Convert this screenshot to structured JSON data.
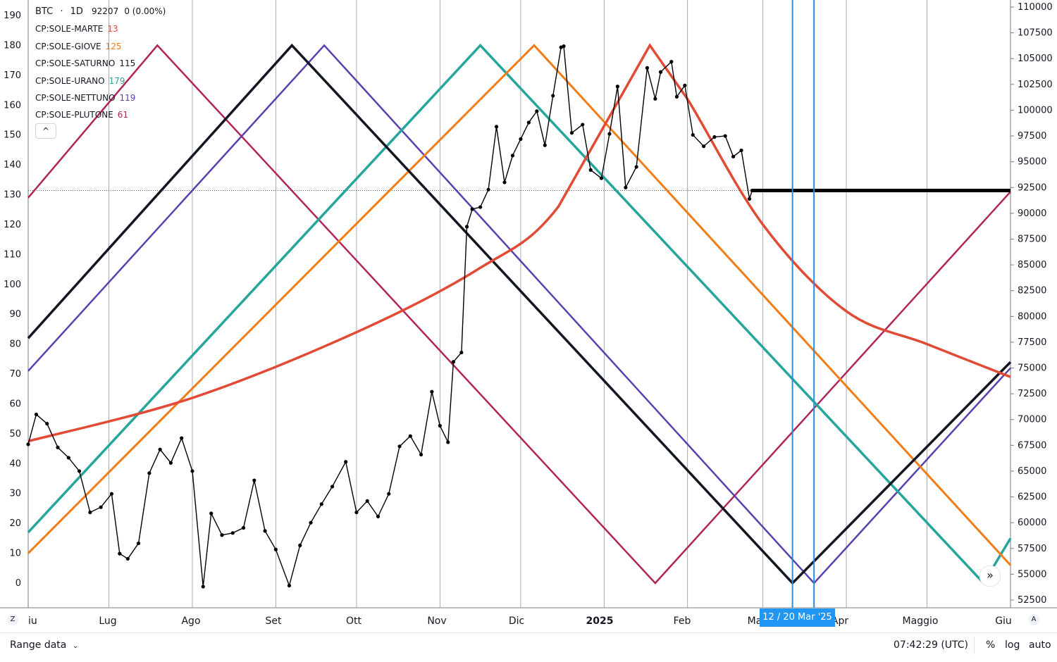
{
  "legend": {
    "symbol": "BTC",
    "interval": "1D",
    "last_value": "92207",
    "change": "0 (0.00%)",
    "indicators": [
      {
        "name": "CP:SOLE-MARTE",
        "value": "13",
        "color": "#e14a35"
      },
      {
        "name": "CP:SOLE-GIOVE",
        "value": "125",
        "color": "#f07d18"
      },
      {
        "name": "CP:SOLE-SATURNO",
        "value": "115",
        "color": "#131722"
      },
      {
        "name": "CP:SOLE-URANO",
        "value": "179",
        "color": "#26a69a"
      },
      {
        "name": "CP:SOLE-NETTUNO",
        "value": "119",
        "color": "#5b3fb0"
      },
      {
        "name": "CP:SOLE-PLUTONE",
        "value": "61",
        "color": "#b0245a"
      }
    ],
    "collapse_icon": "chevron-up-icon"
  },
  "left_axis": {
    "ticks": [
      "190",
      "180",
      "170",
      "160",
      "150",
      "140",
      "130",
      "120",
      "110",
      "100",
      "90",
      "80",
      "70",
      "60",
      "50",
      "40",
      "30",
      "20",
      "10",
      "0"
    ]
  },
  "right_axis": {
    "ticks": [
      "110000",
      "107500",
      "105000",
      "102500",
      "100000",
      "97500",
      "95000",
      "92500",
      "90000",
      "87500",
      "85000",
      "82500",
      "80000",
      "77500",
      "75000",
      "72500",
      "70000",
      "67500",
      "65000",
      "62500",
      "60000",
      "57500",
      "55000",
      "52500"
    ]
  },
  "time_axis": {
    "labels": [
      "iu",
      "Lug",
      "Ago",
      "Set",
      "Ott",
      "Nov",
      "Dic",
      "2025",
      "Feb",
      "Ma",
      "Apr",
      "Maggio",
      "Giu"
    ]
  },
  "crosshair_date_label": "12 / 20 Mar '25",
  "bottom_bar": {
    "range_label": "Range data",
    "range_icon": "chevron-down-icon",
    "time": "07:42:29 (UTC)",
    "percent_label": "%",
    "log_label": "log",
    "auto_label": "auto"
  },
  "buttons": {
    "z_label": "Z",
    "a_label": "A",
    "nav_icon": "double-chevron-right-icon",
    "nav_glyph": "»",
    "collapse_glyph": "^"
  },
  "colors": {
    "marte": "#e14a35",
    "giove": "#f07d18",
    "saturno": "#131722",
    "urano": "#26a69a",
    "nettuno": "#5b3fb0",
    "plutone": "#b0245a",
    "price": "#000000",
    "vline": "#2b8fd8"
  },
  "chart_data": {
    "type": "line",
    "left_axis_range": [
      0,
      190
    ],
    "right_axis_range": [
      52500,
      110000
    ],
    "time_range": [
      "2024-06-01",
      "2025-06-01"
    ],
    "price_series": {
      "name": "BTC",
      "points": [
        [
          "2024-06-01",
          67600
        ],
        [
          "2024-06-04",
          70500
        ],
        [
          "2024-06-08",
          69600
        ],
        [
          "2024-06-12",
          67300
        ],
        [
          "2024-06-16",
          66300
        ],
        [
          "2024-06-20",
          65000
        ],
        [
          "2024-06-24",
          61000
        ],
        [
          "2024-06-28",
          61500
        ],
        [
          "2024-07-02",
          62800
        ],
        [
          "2024-07-05",
          57000
        ],
        [
          "2024-07-08",
          56500
        ],
        [
          "2024-07-12",
          58000
        ],
        [
          "2024-07-16",
          64800
        ],
        [
          "2024-07-20",
          67100
        ],
        [
          "2024-07-24",
          65800
        ],
        [
          "2024-07-28",
          68200
        ],
        [
          "2024-08-01",
          65000
        ],
        [
          "2024-08-05",
          53800
        ],
        [
          "2024-08-08",
          60900
        ],
        [
          "2024-08-12",
          58800
        ],
        [
          "2024-08-16",
          59000
        ],
        [
          "2024-08-20",
          59500
        ],
        [
          "2024-08-24",
          64100
        ],
        [
          "2024-08-28",
          59200
        ],
        [
          "2024-09-01",
          57400
        ],
        [
          "2024-09-06",
          53900
        ],
        [
          "2024-09-10",
          57800
        ],
        [
          "2024-09-14",
          60000
        ],
        [
          "2024-09-18",
          61800
        ],
        [
          "2024-09-22",
          63500
        ],
        [
          "2024-09-27",
          65900
        ],
        [
          "2024-10-01",
          61000
        ],
        [
          "2024-10-05",
          62100
        ],
        [
          "2024-10-09",
          60600
        ],
        [
          "2024-10-13",
          62800
        ],
        [
          "2024-10-17",
          67400
        ],
        [
          "2024-10-21",
          68400
        ],
        [
          "2024-10-25",
          66600
        ],
        [
          "2024-10-29",
          72700
        ],
        [
          "2024-11-01",
          69400
        ],
        [
          "2024-11-04",
          67800
        ],
        [
          "2024-11-06",
          75600
        ],
        [
          "2024-11-09",
          76500
        ],
        [
          "2024-11-11",
          88700
        ],
        [
          "2024-11-13",
          90400
        ],
        [
          "2024-11-16",
          90600
        ],
        [
          "2024-11-19",
          92300
        ],
        [
          "2024-11-22",
          98400
        ],
        [
          "2024-11-25",
          93000
        ],
        [
          "2024-11-28",
          95600
        ],
        [
          "2024-12-01",
          97200
        ],
        [
          "2024-12-04",
          98800
        ],
        [
          "2024-12-07",
          99900
        ],
        [
          "2024-12-10",
          96600
        ],
        [
          "2024-12-13",
          101400
        ],
        [
          "2024-12-16",
          106100
        ],
        [
          "2024-12-17",
          106200
        ],
        [
          "2024-12-20",
          97800
        ],
        [
          "2024-12-24",
          98600
        ],
        [
          "2024-12-27",
          94200
        ],
        [
          "2024-12-31",
          93400
        ],
        [
          "2025-01-03",
          97700
        ],
        [
          "2025-01-06",
          102300
        ],
        [
          "2025-01-09",
          92500
        ],
        [
          "2025-01-13",
          94500
        ],
        [
          "2025-01-17",
          104100
        ],
        [
          "2025-01-20",
          101100
        ],
        [
          "2025-01-22",
          103700
        ],
        [
          "2025-01-26",
          104700
        ],
        [
          "2025-01-28",
          101300
        ],
        [
          "2025-01-31",
          102400
        ],
        [
          "2025-02-03",
          97600
        ],
        [
          "2025-02-07",
          96500
        ],
        [
          "2025-02-11",
          97400
        ],
        [
          "2025-02-15",
          97500
        ],
        [
          "2025-02-18",
          95500
        ],
        [
          "2025-02-21",
          96100
        ],
        [
          "2025-02-24",
          91400
        ],
        [
          "2025-02-25",
          92207
        ]
      ]
    },
    "flat_projection": {
      "from": "2025-02-25",
      "to": "2025-06-01",
      "value": 92207
    },
    "vertical_lines": [
      "2025-03-12",
      "2025-03-20"
    ],
    "cycle_series": [
      {
        "name": "CP:SOLE-MARTE",
        "curve": [
          [
            "2024-06-01",
            47.5
          ],
          [
            "2024-08-01",
            62
          ],
          [
            "2024-10-01",
            84
          ],
          [
            "2024-11-15",
            105
          ],
          [
            "2024-12-15",
            126
          ],
          [
            "2025-01-18",
            180
          ],
          [
            "2025-02-01",
            162
          ],
          [
            "2025-03-01",
            120
          ],
          [
            "2025-04-01",
            91
          ],
          [
            "2025-05-01",
            80
          ],
          [
            "2025-06-01",
            69
          ]
        ]
      },
      {
        "name": "CP:SOLE-GIOVE",
        "curve": [
          [
            "2024-06-01",
            10
          ],
          [
            "2024-12-06",
            180
          ],
          [
            "2025-06-01",
            6
          ]
        ]
      },
      {
        "name": "CP:SOLE-SATURNO",
        "curve": [
          [
            "2024-06-01",
            82
          ],
          [
            "2024-09-07",
            180
          ],
          [
            "2025-03-12",
            0
          ],
          [
            "2025-06-01",
            74
          ]
        ]
      },
      {
        "name": "CP:SOLE-URANO",
        "curve": [
          [
            "2024-06-01",
            17
          ],
          [
            "2024-11-16",
            180
          ],
          [
            "2025-05-22",
            0
          ],
          [
            "2025-06-01",
            15
          ]
        ]
      },
      {
        "name": "CP:SOLE-NETTUNO",
        "curve": [
          [
            "2024-06-01",
            71
          ],
          [
            "2024-09-19",
            180
          ],
          [
            "2025-03-20",
            0
          ],
          [
            "2025-06-01",
            72
          ]
        ]
      },
      {
        "name": "CP:SOLE-PLUTONE",
        "curve": [
          [
            "2024-06-01",
            129
          ],
          [
            "2024-07-19",
            180
          ],
          [
            "2025-01-20",
            0
          ],
          [
            "2025-06-01",
            131
          ]
        ]
      }
    ]
  }
}
